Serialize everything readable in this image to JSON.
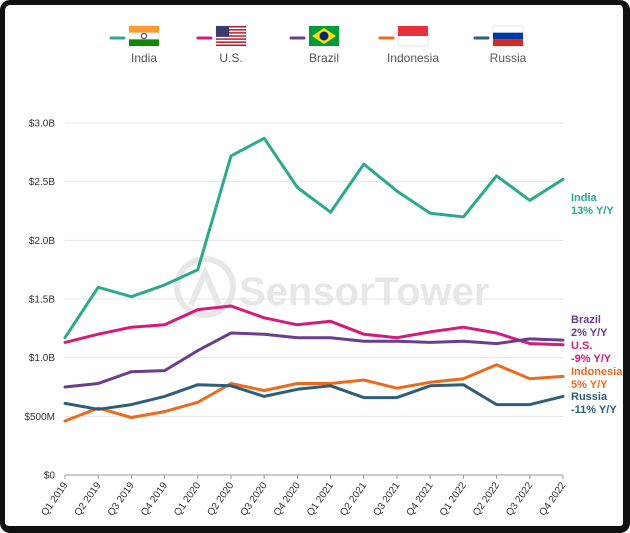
{
  "chart_data": {
    "type": "line",
    "title": "",
    "xlabel": "",
    "ylabel": "",
    "ylim": [
      0,
      3000000000
    ],
    "grid": true,
    "legend_position": "top",
    "categories": [
      "Q1 2019",
      "Q2 2019",
      "Q3 2019",
      "Q4 2019",
      "Q1 2020",
      "Q2 2020",
      "Q3 2020",
      "Q4 2020",
      "Q1 2021",
      "Q2 2021",
      "Q3 2021",
      "Q4 2021",
      "Q1 2022",
      "Q2 2022",
      "Q3 2022",
      "Q4 2022"
    ],
    "y_ticks": [
      {
        "value": 0,
        "label": "$0"
      },
      {
        "value": 500000000,
        "label": "$500M"
      },
      {
        "value": 1000000000,
        "label": "$1.0B"
      },
      {
        "value": 1500000000,
        "label": "$1.5B"
      },
      {
        "value": 2000000000,
        "label": "$2.0B"
      },
      {
        "value": 2500000000,
        "label": "$2.5B"
      },
      {
        "value": 3000000000,
        "label": "$3.0B"
      }
    ],
    "series": [
      {
        "name": "India",
        "flag": "india-flag-icon",
        "color": "#2aa98f",
        "end_label": "India",
        "end_change": "13% Y/Y",
        "values": [
          1170000000,
          1600000000,
          1520000000,
          1620000000,
          1750000000,
          2720000000,
          2870000000,
          2450000000,
          2240000000,
          2650000000,
          2420000000,
          2230000000,
          2200000000,
          2550000000,
          2340000000,
          2520000000
        ]
      },
      {
        "name": "U.S.",
        "flag": "us-flag-icon",
        "color": "#d6197d",
        "end_label": "U.S.",
        "end_change": "-9% Y/Y",
        "values": [
          1130000000,
          1200000000,
          1260000000,
          1280000000,
          1410000000,
          1440000000,
          1340000000,
          1280000000,
          1310000000,
          1200000000,
          1170000000,
          1220000000,
          1260000000,
          1210000000,
          1120000000,
          1110000000
        ]
      },
      {
        "name": "Brazil",
        "flag": "brazil-flag-icon",
        "color": "#6b3d8e",
        "end_label": "Brazil",
        "end_change": "2% Y/Y",
        "values": [
          750000000,
          780000000,
          880000000,
          890000000,
          1060000000,
          1210000000,
          1200000000,
          1170000000,
          1170000000,
          1140000000,
          1140000000,
          1130000000,
          1140000000,
          1120000000,
          1160000000,
          1150000000
        ]
      },
      {
        "name": "Indonesia",
        "flag": "indonesia-flag-icon",
        "color": "#ec6a1b",
        "end_label": "Indonesia",
        "end_change": "5% Y/Y",
        "values": [
          460000000,
          570000000,
          490000000,
          540000000,
          620000000,
          780000000,
          720000000,
          780000000,
          780000000,
          810000000,
          740000000,
          790000000,
          820000000,
          940000000,
          820000000,
          840000000
        ]
      },
      {
        "name": "Russia",
        "flag": "russia-flag-icon",
        "color": "#2e5e7a",
        "end_label": "Russia",
        "end_change": "-11% Y/Y",
        "values": [
          610000000,
          560000000,
          600000000,
          670000000,
          770000000,
          760000000,
          670000000,
          730000000,
          760000000,
          660000000,
          660000000,
          760000000,
          770000000,
          600000000,
          600000000,
          670000000
        ]
      }
    ],
    "watermark": "SensorTower"
  }
}
